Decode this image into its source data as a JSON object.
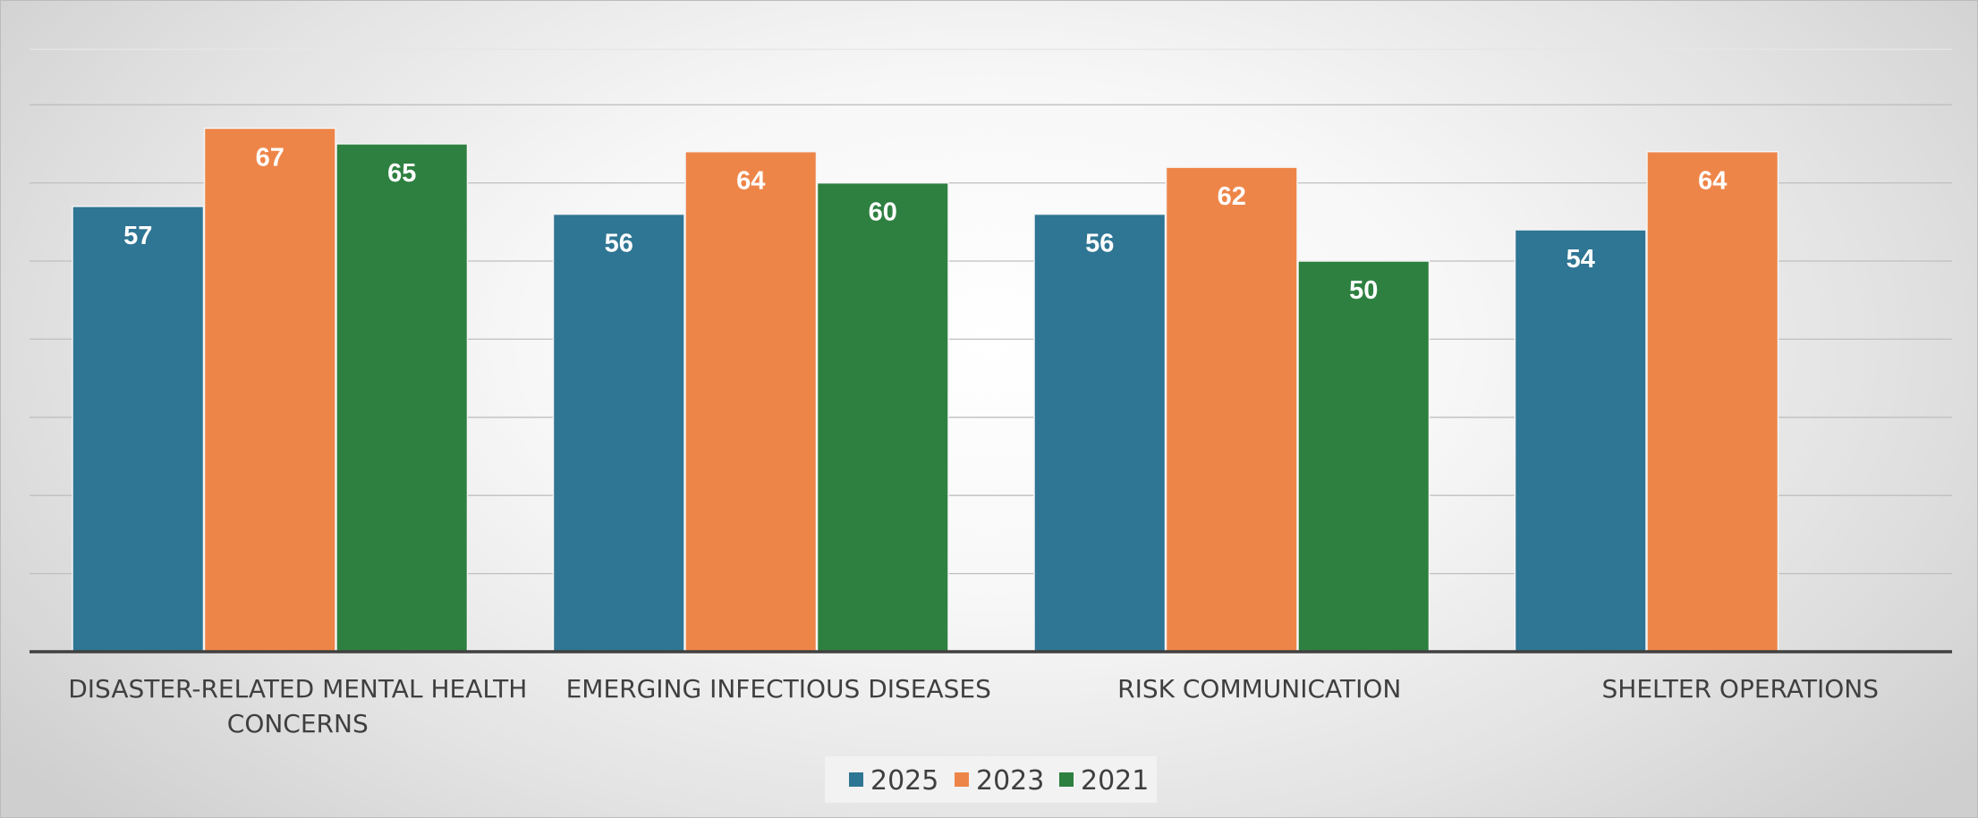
{
  "chart_data": {
    "type": "bar",
    "title": "",
    "xlabel": "",
    "ylabel": "",
    "categories": [
      [
        "DISASTER-RELATED MENTAL HEALTH",
        "CONCERNS"
      ],
      [
        "EMERGING INFECTIOUS DISEASES"
      ],
      [
        "RISK COMMUNICATION"
      ],
      [
        "SHELTER OPERATIONS"
      ]
    ],
    "series": [
      {
        "name": "2025",
        "color": "#2f7594",
        "values": [
          57,
          56,
          56,
          54
        ]
      },
      {
        "name": "2023",
        "color": "#ee8548",
        "values": [
          67,
          64,
          62,
          64
        ]
      },
      {
        "name": "2021",
        "color": "#2e8040",
        "values": [
          65,
          60,
          50,
          null
        ]
      }
    ],
    "ylim": [
      0,
      70
    ],
    "gridline_step": 10,
    "grid": true,
    "legend_position": "bottom",
    "axis_color": "#404040",
    "grid_color": "#bfbfbf"
  }
}
